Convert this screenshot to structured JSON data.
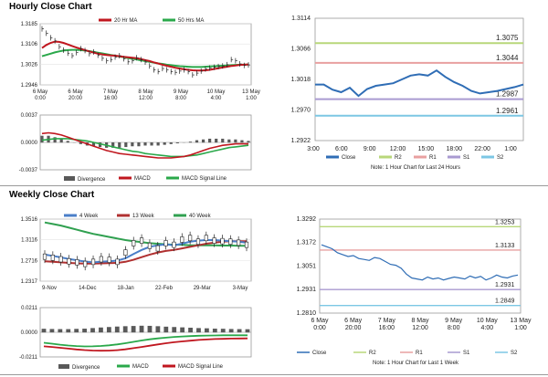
{
  "titles": {
    "hourly": "Hourly Close Chart",
    "weekly": "Weekly Close Chart"
  },
  "colors": {
    "ma_short": "#c0171f",
    "ma_long": "#2aa84a",
    "divergence": "#595959",
    "macd": "#c0171f",
    "signal": "#2aa84a",
    "close": "#2f6db5",
    "r2": "#b8d77a",
    "r1": "#e8a0a0",
    "s1": "#a99ad1",
    "s2": "#7cc7e4",
    "candle": "#222222",
    "ma4": "#4a7ec8",
    "ma13": "#b03030",
    "ma40": "#30a050"
  },
  "charts": {
    "hourly_price": {
      "type": "line",
      "legend": [
        "20 Hr MA",
        "50 Hrs MA"
      ],
      "yticks": [
        "1.3185",
        "1.3106",
        "1.3026",
        "1.2946"
      ],
      "ylim": [
        1.2946,
        1.3185
      ],
      "xticks": [
        [
          "6 May",
          "0:00"
        ],
        [
          "6 May",
          "20:00"
        ],
        [
          "7 May",
          "16:00"
        ],
        [
          "8 May",
          "12:00"
        ],
        [
          "9 May",
          "8:00"
        ],
        [
          "10 May",
          "4:00"
        ],
        [
          "13 May",
          "1:00"
        ]
      ],
      "price": [
        1.3165,
        1.3148,
        1.313,
        1.3118,
        1.3095,
        1.3082,
        1.307,
        1.306,
        1.3072,
        1.3088,
        1.308,
        1.3068,
        1.3075,
        1.3062,
        1.305,
        1.304,
        1.3045,
        1.3055,
        1.306,
        1.3048,
        1.3036,
        1.304,
        1.3052,
        1.3045,
        1.3035,
        1.302,
        1.3005,
        1.2998,
        1.301,
        1.3005,
        1.2998,
        1.2995,
        1.3,
        1.3005,
        1.2998,
        1.2985,
        1.2992,
        1.3,
        1.3008,
        1.3012,
        1.3015,
        1.3018,
        1.302,
        1.3025,
        1.3045,
        1.304,
        1.3028,
        1.3022,
        1.3024
      ],
      "ma20": [
        1.309,
        1.3102,
        1.311,
        1.3115,
        1.3114,
        1.311,
        1.3104,
        1.3098,
        1.3092,
        1.3087,
        1.3082,
        1.3077,
        1.3072,
        1.3068,
        1.3065,
        1.3063,
        1.3061,
        1.306,
        1.3058,
        1.3056,
        1.3054,
        1.3052,
        1.305,
        1.3047,
        1.3043,
        1.3039,
        1.3034,
        1.303,
        1.3025,
        1.3021,
        1.3017,
        1.3013,
        1.301,
        1.3007,
        1.3005,
        1.3003,
        1.3002,
        1.3002,
        1.3003,
        1.3005,
        1.3008,
        1.3011,
        1.3014,
        1.3017,
        1.302,
        1.3022,
        1.3024,
        1.3025,
        1.3026
      ],
      "ma50": [
        1.3058,
        1.3063,
        1.3068,
        1.3073,
        1.3077,
        1.308,
        1.3082,
        1.3083,
        1.3083,
        1.3082,
        1.308,
        1.3078,
        1.3075,
        1.3072,
        1.3069,
        1.3066,
        1.3063,
        1.306,
        1.3057,
        1.3054,
        1.3051,
        1.3048,
        1.3045,
        1.3042,
        1.3039,
        1.3036,
        1.3033,
        1.303,
        1.3028,
        1.3025,
        1.3023,
        1.3021,
        1.3019,
        1.3018,
        1.3017,
        1.3016,
        1.3016,
        1.3016,
        1.3017,
        1.3018,
        1.3019,
        1.302,
        1.3021,
        1.3022,
        1.3023,
        1.3024,
        1.3025,
        1.3025,
        1.3026
      ]
    },
    "hourly_macd": {
      "type": "line",
      "legend": [
        "Divergence",
        "MACD",
        "MACD Signal Line"
      ],
      "yticks": [
        "0.0037",
        "0.0000",
        "-0.0037"
      ],
      "ylim": [
        -0.0037,
        0.0037
      ],
      "macd": [
        0.0012,
        0.0013,
        0.0012,
        0.001,
        0.0007,
        0.0004,
        0.0001,
        -0.0002,
        -0.0005,
        -0.0008,
        -0.0011,
        -0.0013,
        -0.0015,
        -0.0016,
        -0.0017,
        -0.0018,
        -0.0019,
        -0.002,
        -0.0021,
        -0.0021,
        -0.0021,
        -0.002,
        -0.0019,
        -0.0017,
        -0.0014,
        -0.0011,
        -0.0008,
        -0.0006,
        -0.0004,
        -0.0003,
        -0.0002,
        -0.0002,
        -0.0002
      ],
      "signal": [
        0.0003,
        0.0004,
        0.0005,
        0.0005,
        0.0005,
        0.0004,
        0.0003,
        0.0002,
        0.0,
        -0.0002,
        -0.0004,
        -0.0006,
        -0.0008,
        -0.001,
        -0.0012,
        -0.0013,
        -0.0015,
        -0.0016,
        -0.0017,
        -0.0018,
        -0.0019,
        -0.0019,
        -0.0019,
        -0.0018,
        -0.0017,
        -0.0015,
        -0.0013,
        -0.0011,
        -0.0009,
        -0.0007,
        -0.0006,
        -0.0005,
        -0.0004
      ],
      "divergence": [
        0.0009,
        0.0009,
        0.0007,
        0.0005,
        0.0002,
        0.0,
        -0.0002,
        -0.0004,
        -0.0005,
        -0.0006,
        -0.0007,
        -0.0007,
        -0.0007,
        -0.0006,
        -0.0005,
        -0.0005,
        -0.0004,
        -0.0004,
        -0.0004,
        -0.0003,
        -0.0002,
        -0.0001,
        0.0,
        0.0001,
        0.0003,
        0.0004,
        0.0005,
        0.0005,
        0.0005,
        0.0004,
        0.0004,
        0.0003,
        0.0002
      ]
    },
    "last24": {
      "type": "line",
      "legend": [
        "Close",
        "R2",
        "R1",
        "S1",
        "S2"
      ],
      "yticks": [
        "1.3114",
        "1.3066",
        "1.3018",
        "1.2970",
        "1.2922"
      ],
      "ylim": [
        1.2922,
        1.3114
      ],
      "xticks": [
        "3:00",
        "6:00",
        "9:00",
        "12:00",
        "15:00",
        "18:00",
        "22:00",
        "1:00"
      ],
      "levels": {
        "R2": 1.3075,
        "R1": 1.3044,
        "S1": 1.2987,
        "S2": 1.2961
      },
      "level_labels": {
        "R2": "1.3075",
        "R1": "1.3044",
        "S1": "1.2987",
        "S2": "1.2961"
      },
      "close": [
        1.301,
        1.301,
        1.3002,
        1.2998,
        1.3005,
        1.2992,
        1.3003,
        1.3008,
        1.301,
        1.3012,
        1.3018,
        1.3024,
        1.3026,
        1.3024,
        1.3032,
        1.3022,
        1.3014,
        1.3008,
        1.3,
        1.2996,
        1.2998,
        1.3,
        1.3003,
        1.3006,
        1.301
      ],
      "note": "Note: 1 Hour Chart for Last 24 Hours"
    },
    "weekly_price": {
      "type": "line",
      "legend": [
        "4 Week",
        "13 Week",
        "40 Week"
      ],
      "yticks": [
        "1.3516",
        "1.3116",
        "1.2716",
        "1.2317"
      ],
      "ylim": [
        1.2317,
        1.3516
      ],
      "xticks": [
        "9-Nov",
        "14-Dec",
        "18-Jan",
        "22-Feb",
        "29-Mar",
        "3-May"
      ],
      "close": [
        1.279,
        1.277,
        1.274,
        1.27,
        1.268,
        1.265,
        1.269,
        1.274,
        1.273,
        1.269,
        1.287,
        1.305,
        1.31,
        1.3,
        1.295,
        1.305,
        1.302,
        1.312,
        1.315,
        1.308,
        1.315,
        1.31,
        1.309,
        1.308,
        1.306,
        1.302
      ],
      "ma4": [
        1.283,
        1.2805,
        1.2775,
        1.2745,
        1.272,
        1.2695,
        1.268,
        1.269,
        1.27,
        1.2715,
        1.276,
        1.284,
        1.292,
        1.298,
        1.301,
        1.303,
        1.301,
        1.304,
        1.308,
        1.31,
        1.311,
        1.311,
        1.31,
        1.309,
        1.308,
        1.306
      ],
      "ma13": [
        1.27,
        1.269,
        1.268,
        1.267,
        1.266,
        1.2655,
        1.2655,
        1.266,
        1.2665,
        1.267,
        1.269,
        1.273,
        1.278,
        1.283,
        1.287,
        1.29,
        1.292,
        1.295,
        1.298,
        1.301,
        1.304,
        1.306,
        1.308,
        1.309,
        1.309,
        1.309
      ],
      "ma40": [
        1.345,
        1.342,
        1.339,
        1.335,
        1.331,
        1.327,
        1.323,
        1.32,
        1.317,
        1.314,
        1.311,
        1.309,
        1.307,
        1.305,
        1.304,
        1.303,
        1.302,
        1.302,
        1.301,
        1.301,
        1.301,
        1.301,
        1.3005,
        1.3005,
        1.3,
        1.3
      ]
    },
    "weekly_macd": {
      "type": "line",
      "legend": [
        "Divergence",
        "MACD",
        "MACD Signal Line"
      ],
      "yticks": [
        "0.0211",
        "0.0000",
        "-0.0211"
      ],
      "ylim": [
        -0.0211,
        0.0211
      ],
      "macd": [
        -0.009,
        -0.0098,
        -0.0106,
        -0.0113,
        -0.0118,
        -0.0121,
        -0.012,
        -0.0117,
        -0.0112,
        -0.0104,
        -0.0094,
        -0.0082,
        -0.007,
        -0.006,
        -0.0052,
        -0.0046,
        -0.004,
        -0.0036,
        -0.0033,
        -0.003,
        -0.0028,
        -0.0027,
        -0.0026,
        -0.0026,
        -0.0026,
        -0.0026
      ],
      "signal": [
        -0.012,
        -0.0126,
        -0.0133,
        -0.014,
        -0.0147,
        -0.0152,
        -0.0156,
        -0.0158,
        -0.0157,
        -0.0153,
        -0.0146,
        -0.0136,
        -0.0126,
        -0.0115,
        -0.0104,
        -0.0094,
        -0.0085,
        -0.0078,
        -0.0072,
        -0.0066,
        -0.0062,
        -0.0058,
        -0.0056,
        -0.0054,
        -0.0053,
        -0.0052
      ],
      "divergence": [
        0.003,
        0.0028,
        0.0027,
        0.0027,
        0.0029,
        0.0031,
        0.0036,
        0.0041,
        0.0045,
        0.0049,
        0.0052,
        0.0054,
        0.0056,
        0.0055,
        0.0052,
        0.0048,
        0.0045,
        0.0042,
        0.0039,
        0.0036,
        0.0034,
        0.0031,
        0.003,
        0.0028,
        0.0027,
        0.0026
      ]
    },
    "weekly_close": {
      "type": "line",
      "legend": [
        "Close",
        "R2",
        "R1",
        "S1",
        "S2"
      ],
      "yticks": [
        "1.3292",
        "1.3172",
        "1.3051",
        "1.2931",
        "1.2810"
      ],
      "ylim": [
        1.281,
        1.3292
      ],
      "xticks": [
        [
          "6 May",
          "0:00"
        ],
        [
          "6 May",
          "20:00"
        ],
        [
          "7 May",
          "16:00"
        ],
        [
          "8 May",
          "12:00"
        ],
        [
          "9 May",
          "8:00"
        ],
        [
          "10 May",
          "4:00"
        ],
        [
          "13 May",
          "1:00"
        ]
      ],
      "levels": {
        "R2": 1.3253,
        "R1": 1.3133,
        "S1": 1.2931,
        "S2": 1.2849
      },
      "level_labels": {
        "R2": "1.3253",
        "R1": "1.3133",
        "S1": "1.2931",
        "S2": "1.2849"
      },
      "close": [
        1.316,
        1.315,
        1.314,
        1.312,
        1.311,
        1.31,
        1.3105,
        1.309,
        1.3085,
        1.308,
        1.3095,
        1.309,
        1.3075,
        1.306,
        1.3055,
        1.304,
        1.301,
        1.299,
        1.2985,
        1.298,
        1.2995,
        1.2985,
        1.299,
        1.298,
        1.2988,
        1.2995,
        1.299,
        1.2985,
        1.3,
        1.299,
        1.2998,
        1.298,
        1.299,
        1.3005,
        1.2995,
        1.299,
        1.3,
        1.3005
      ],
      "note": "Note: 1 Hour Chart for Last 1 Week"
    }
  }
}
